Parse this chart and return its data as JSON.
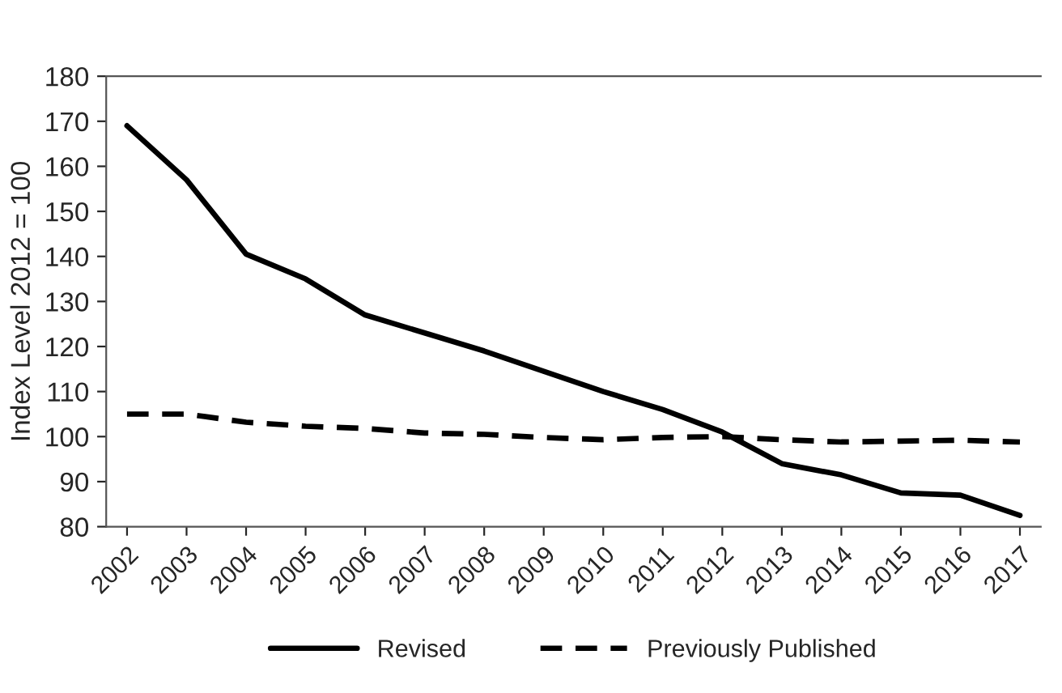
{
  "chart_data": {
    "type": "line",
    "ylabel": "Index Level 2012 = 100",
    "categories": [
      "2002",
      "2003",
      "2004",
      "2005",
      "2006",
      "2007",
      "2008",
      "2009",
      "2010",
      "2011",
      "2012",
      "2013",
      "2014",
      "2015",
      "2016",
      "2017"
    ],
    "series": [
      {
        "name": "Revised",
        "color": "#000000",
        "line_style": "solid",
        "values": [
          169,
          157,
          140.5,
          135,
          127,
          123,
          119,
          114.5,
          110,
          106,
          101,
          94,
          91.5,
          87.5,
          87,
          82.5
        ]
      },
      {
        "name": "Previously Published",
        "color": "#000000",
        "line_style": "dashed",
        "values": [
          105,
          105,
          103.2,
          102.3,
          101.8,
          100.8,
          100.5,
          99.8,
          99.3,
          99.8,
          100,
          99.3,
          98.8,
          99,
          99.2,
          98.8
        ]
      }
    ],
    "ylim": [
      80,
      180
    ],
    "yticks": [
      80,
      90,
      100,
      110,
      120,
      130,
      140,
      150,
      160,
      170,
      180
    ],
    "grid": false,
    "legend": "bottom",
    "marker": "none"
  }
}
